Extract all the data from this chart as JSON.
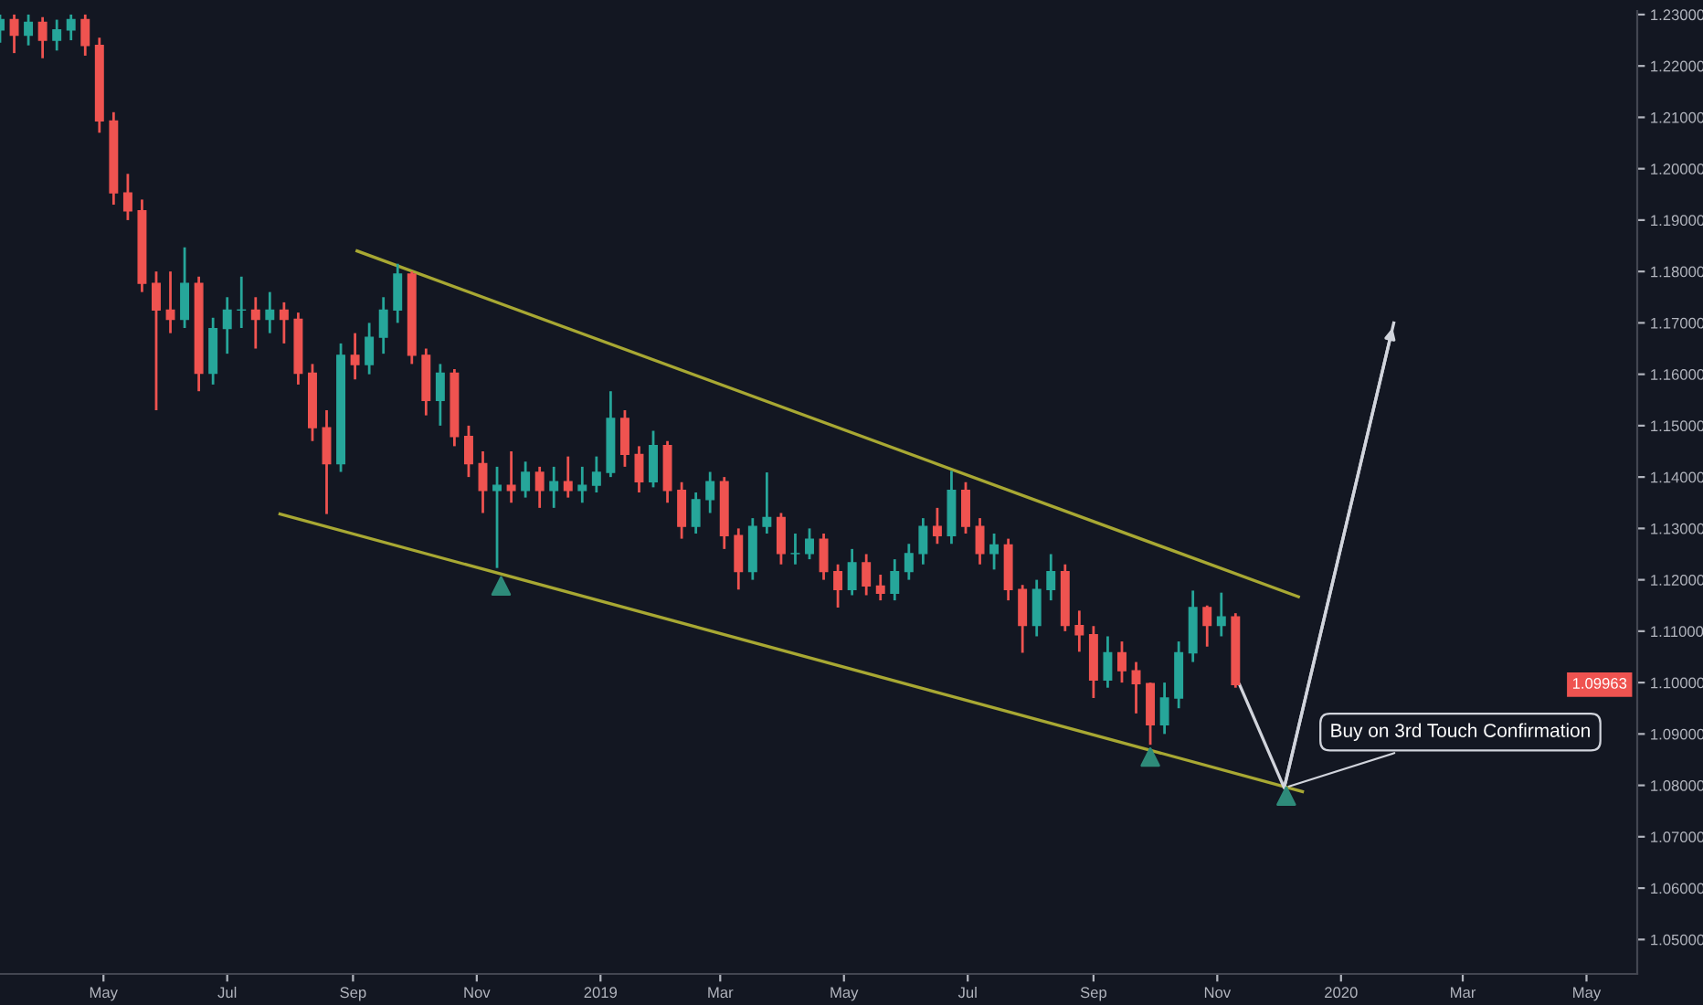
{
  "chart_data": {
    "type": "candlestick",
    "x": [
      "2018-03-11",
      "2018-03-18",
      "2018-03-25",
      "2018-04-01",
      "2018-04-08",
      "2018-04-15",
      "2018-04-22",
      "2018-04-29",
      "2018-05-06",
      "2018-05-13",
      "2018-05-20",
      "2018-05-27",
      "2018-06-03",
      "2018-06-10",
      "2018-06-17",
      "2018-06-24",
      "2018-07-01",
      "2018-07-08",
      "2018-07-15",
      "2018-07-22",
      "2018-07-29",
      "2018-08-05",
      "2018-08-12",
      "2018-08-19",
      "2018-08-26",
      "2018-09-02",
      "2018-09-09",
      "2018-09-16",
      "2018-09-23",
      "2018-09-30",
      "2018-10-07",
      "2018-10-14",
      "2018-10-21",
      "2018-10-28",
      "2018-11-04",
      "2018-11-11",
      "2018-11-18",
      "2018-11-25",
      "2018-12-02",
      "2018-12-09",
      "2018-12-16",
      "2018-12-23",
      "2018-12-30",
      "2019-01-06",
      "2019-01-13",
      "2019-01-20",
      "2019-01-27",
      "2019-02-03",
      "2019-02-10",
      "2019-02-17",
      "2019-02-24",
      "2019-03-03",
      "2019-03-10",
      "2019-03-17",
      "2019-03-24",
      "2019-03-31",
      "2019-04-07",
      "2019-04-14",
      "2019-04-21",
      "2019-04-28",
      "2019-05-05",
      "2019-05-12",
      "2019-05-19",
      "2019-05-26",
      "2019-06-02",
      "2019-06-09",
      "2019-06-16",
      "2019-06-23",
      "2019-06-30",
      "2019-07-07",
      "2019-07-14",
      "2019-07-21",
      "2019-07-28",
      "2019-08-04",
      "2019-08-11",
      "2019-08-18",
      "2019-08-25",
      "2019-09-01",
      "2019-09-08",
      "2019-09-15",
      "2019-09-22",
      "2019-09-29",
      "2019-10-06",
      "2019-10-13",
      "2019-10-20",
      "2019-10-27",
      "2019-11-03",
      "2019-11-10"
    ],
    "ohlc": [
      [
        1.227,
        1.23,
        1.2245,
        1.229
      ],
      [
        1.229,
        1.23,
        1.2225,
        1.226
      ],
      [
        1.226,
        1.23,
        1.224,
        1.2285
      ],
      [
        1.2285,
        1.2295,
        1.2215,
        1.225
      ],
      [
        1.225,
        1.229,
        1.223,
        1.227
      ],
      [
        1.227,
        1.23,
        1.225,
        1.229
      ],
      [
        1.229,
        1.23,
        1.222,
        1.224
      ],
      [
        1.224,
        1.2255,
        1.207,
        1.2093
      ],
      [
        1.2093,
        1.211,
        1.193,
        1.1953
      ],
      [
        1.1953,
        1.199,
        1.19,
        1.1918
      ],
      [
        1.1918,
        1.194,
        1.176,
        1.1777
      ],
      [
        1.1777,
        1.18,
        1.153,
        1.1725
      ],
      [
        1.1725,
        1.18,
        1.168,
        1.1707
      ],
      [
        1.1707,
        1.1847,
        1.169,
        1.1777
      ],
      [
        1.1777,
        1.179,
        1.1567,
        1.1602
      ],
      [
        1.1602,
        1.171,
        1.158,
        1.1689
      ],
      [
        1.1689,
        1.175,
        1.164,
        1.1725
      ],
      [
        1.1725,
        1.179,
        1.169,
        1.1725
      ],
      [
        1.1725,
        1.175,
        1.165,
        1.1707
      ],
      [
        1.1707,
        1.176,
        1.168,
        1.1725
      ],
      [
        1.1725,
        1.174,
        1.166,
        1.1707
      ],
      [
        1.1707,
        1.172,
        1.158,
        1.1602
      ],
      [
        1.1602,
        1.162,
        1.147,
        1.1496
      ],
      [
        1.1496,
        1.153,
        1.1328,
        1.1426
      ],
      [
        1.1426,
        1.166,
        1.141,
        1.1637
      ],
      [
        1.1637,
        1.168,
        1.159,
        1.1619
      ],
      [
        1.1619,
        1.17,
        1.16,
        1.1672
      ],
      [
        1.1672,
        1.175,
        1.164,
        1.1725
      ],
      [
        1.1725,
        1.1815,
        1.17,
        1.1795
      ],
      [
        1.1795,
        1.18,
        1.162,
        1.1637
      ],
      [
        1.1637,
        1.165,
        1.152,
        1.1549
      ],
      [
        1.1549,
        1.162,
        1.15,
        1.1602
      ],
      [
        1.1602,
        1.161,
        1.146,
        1.1479
      ],
      [
        1.1479,
        1.15,
        1.14,
        1.1426
      ],
      [
        1.1426,
        1.145,
        1.133,
        1.1374
      ],
      [
        1.1374,
        1.142,
        1.1223,
        1.1384
      ],
      [
        1.1384,
        1.145,
        1.135,
        1.1374
      ],
      [
        1.1374,
        1.143,
        1.136,
        1.1409
      ],
      [
        1.1409,
        1.142,
        1.134,
        1.1374
      ],
      [
        1.1374,
        1.142,
        1.134,
        1.1391
      ],
      [
        1.1391,
        1.144,
        1.136,
        1.1374
      ],
      [
        1.1374,
        1.142,
        1.135,
        1.1384
      ],
      [
        1.1384,
        1.144,
        1.137,
        1.1409
      ],
      [
        1.1409,
        1.1567,
        1.14,
        1.1514
      ],
      [
        1.1514,
        1.153,
        1.142,
        1.1444
      ],
      [
        1.1444,
        1.146,
        1.137,
        1.1391
      ],
      [
        1.1391,
        1.149,
        1.138,
        1.1461
      ],
      [
        1.1461,
        1.147,
        1.135,
        1.1374
      ],
      [
        1.1374,
        1.139,
        1.128,
        1.1304
      ],
      [
        1.1304,
        1.137,
        1.129,
        1.1356
      ],
      [
        1.1356,
        1.141,
        1.133,
        1.1391
      ],
      [
        1.1391,
        1.14,
        1.126,
        1.1286
      ],
      [
        1.1286,
        1.13,
        1.1181,
        1.1216
      ],
      [
        1.1216,
        1.132,
        1.12,
        1.1304
      ],
      [
        1.1304,
        1.1409,
        1.129,
        1.1321
      ],
      [
        1.1321,
        1.133,
        1.123,
        1.1251
      ],
      [
        1.1251,
        1.129,
        1.123,
        1.1251
      ],
      [
        1.1251,
        1.13,
        1.124,
        1.1279
      ],
      [
        1.1279,
        1.129,
        1.12,
        1.1216
      ],
      [
        1.1216,
        1.123,
        1.1146,
        1.1181
      ],
      [
        1.1181,
        1.126,
        1.117,
        1.1233
      ],
      [
        1.1233,
        1.125,
        1.117,
        1.1188
      ],
      [
        1.1188,
        1.121,
        1.116,
        1.1174
      ],
      [
        1.1174,
        1.124,
        1.116,
        1.1216
      ],
      [
        1.1216,
        1.127,
        1.12,
        1.1251
      ],
      [
        1.1251,
        1.132,
        1.123,
        1.1304
      ],
      [
        1.1304,
        1.134,
        1.127,
        1.1286
      ],
      [
        1.1286,
        1.1412,
        1.127,
        1.1374
      ],
      [
        1.1374,
        1.139,
        1.129,
        1.1304
      ],
      [
        1.1304,
        1.132,
        1.123,
        1.1251
      ],
      [
        1.1251,
        1.129,
        1.122,
        1.1268
      ],
      [
        1.1268,
        1.128,
        1.116,
        1.1181
      ],
      [
        1.1181,
        1.119,
        1.1058,
        1.1111
      ],
      [
        1.1111,
        1.12,
        1.109,
        1.1181
      ],
      [
        1.1181,
        1.125,
        1.116,
        1.1216
      ],
      [
        1.1216,
        1.123,
        1.11,
        1.1111
      ],
      [
        1.1111,
        1.114,
        1.106,
        1.1093
      ],
      [
        1.1093,
        1.111,
        1.097,
        1.1005
      ],
      [
        1.1005,
        1.109,
        1.099,
        1.1058
      ],
      [
        1.1058,
        1.108,
        1.1,
        1.1023
      ],
      [
        1.1023,
        1.104,
        1.094,
        1.0998
      ],
      [
        1.0998,
        1.1,
        1.0879,
        1.0918
      ],
      [
        1.0918,
        1.1,
        1.09,
        1.097
      ],
      [
        1.097,
        1.108,
        1.095,
        1.1058
      ],
      [
        1.1058,
        1.1179,
        1.104,
        1.1146
      ],
      [
        1.1146,
        1.115,
        1.107,
        1.1111
      ],
      [
        1.1111,
        1.1175,
        1.109,
        1.1128
      ],
      [
        1.1128,
        1.1135,
        1.099,
        1.0996
      ]
    ],
    "colors": [
      "#26a69a",
      "#ef5350",
      "#26a69a",
      "#ef5350",
      "#26a69a",
      "#26a69a",
      "#ef5350",
      "#ef5350",
      "#ef5350",
      "#ef5350",
      "#ef5350",
      "#ef5350",
      "#ef5350",
      "#26a69a",
      "#ef5350",
      "#26a69a",
      "#26a69a",
      "#26a69a",
      "#ef5350",
      "#26a69a",
      "#ef5350",
      "#ef5350",
      "#ef5350",
      "#ef5350",
      "#26a69a",
      "#ef5350",
      "#26a69a",
      "#26a69a",
      "#26a69a",
      "#ef5350",
      "#ef5350",
      "#26a69a",
      "#ef5350",
      "#ef5350",
      "#ef5350",
      "#26a69a",
      "#ef5350",
      "#26a69a",
      "#ef5350",
      "#26a69a",
      "#ef5350",
      "#26a69a",
      "#26a69a",
      "#26a69a",
      "#ef5350",
      "#ef5350",
      "#26a69a",
      "#ef5350",
      "#ef5350",
      "#26a69a",
      "#26a69a",
      "#ef5350",
      "#ef5350",
      "#26a69a",
      "#26a69a",
      "#ef5350",
      "#26a69a",
      "#26a69a",
      "#ef5350",
      "#ef5350",
      "#26a69a",
      "#ef5350",
      "#ef5350",
      "#26a69a",
      "#26a69a",
      "#26a69a",
      "#ef5350",
      "#26a69a",
      "#ef5350",
      "#ef5350",
      "#26a69a",
      "#ef5350",
      "#ef5350",
      "#26a69a",
      "#26a69a",
      "#ef5350",
      "#ef5350",
      "#ef5350",
      "#26a69a",
      "#ef5350",
      "#ef5350",
      "#ef5350",
      "#26a69a",
      "#26a69a",
      "#26a69a",
      "#ef5350",
      "#26a69a",
      "#ef5350"
    ],
    "series": [
      {
        "type": "line",
        "color": "#a8a833",
        "x": [
          "2018-09-03",
          "2019-12-11"
        ],
        "values": [
          1.184,
          1.1167
        ]
      },
      {
        "type": "line",
        "color": "#a8a833",
        "x": [
          "2018-07-27",
          "2019-12-13"
        ],
        "values": [
          1.1328,
          1.0788
        ]
      },
      {
        "type": "line",
        "color": "#d1d4dc",
        "x": [
          "2019-11-12",
          "2019-12-04",
          "2020-01-27"
        ],
        "values": [
          1.0996,
          1.0795,
          1.17
        ]
      },
      {
        "type": "scatter",
        "color": "#2e8b7a",
        "marker": "triangle",
        "x": [
          "2018-11-13",
          "2019-09-29",
          "2019-12-05"
        ],
        "values": [
          1.1188,
          1.0855,
          1.0779
        ]
      }
    ],
    "annotations": [
      {
        "text": "Buy on 3rd Touch Confirmation",
        "x": "2019-12-04",
        "y": 1.0795
      },
      "1.09963"
    ],
    "xlim": [
      "2018-03-11",
      "2020-05-26"
    ],
    "ylim": [
      1.0433,
      1.2307
    ],
    "xticks": [
      {
        "value": "2018-05-01",
        "label": "May"
      },
      {
        "value": "2018-07-01",
        "label": "Jul"
      },
      {
        "value": "2018-09-01",
        "label": "Sep"
      },
      {
        "value": "2018-11-01",
        "label": "Nov"
      },
      {
        "value": "2019-01-01",
        "label": "2019"
      },
      {
        "value": "2019-03-01",
        "label": "Mar"
      },
      {
        "value": "2019-05-01",
        "label": "May"
      },
      {
        "value": "2019-07-01",
        "label": "Jul"
      },
      {
        "value": "2019-09-01",
        "label": "Sep"
      },
      {
        "value": "2019-11-01",
        "label": "Nov"
      },
      {
        "value": "2020-01-01",
        "label": "2020"
      },
      {
        "value": "2020-03-01",
        "label": "Mar"
      },
      {
        "value": "2020-05-01",
        "label": "May"
      }
    ],
    "yticks": [
      {
        "value": 1.05,
        "label": "1.05000"
      },
      {
        "value": 1.06,
        "label": "1.06000"
      },
      {
        "value": 1.07,
        "label": "1.07000"
      },
      {
        "value": 1.08,
        "label": "1.08000"
      },
      {
        "value": 1.09,
        "label": "1.09000"
      },
      {
        "value": 1.1,
        "label": "1.10000"
      },
      {
        "value": 1.11,
        "label": "1.11000"
      },
      {
        "value": 1.12,
        "label": "1.12000"
      },
      {
        "value": 1.13,
        "label": "1.13000"
      },
      {
        "value": 1.14,
        "label": "1.14000"
      },
      {
        "value": 1.15,
        "label": "1.15000"
      },
      {
        "value": 1.16,
        "label": "1.16000"
      },
      {
        "value": 1.17,
        "label": "1.17000"
      },
      {
        "value": 1.18,
        "label": "1.18000"
      },
      {
        "value": 1.19,
        "label": "1.19000"
      },
      {
        "value": 1.2,
        "label": "1.20000"
      },
      {
        "value": 1.21,
        "label": "1.21000"
      },
      {
        "value": 1.22,
        "label": "1.22000"
      },
      {
        "value": 1.23,
        "label": "1.23000"
      }
    ],
    "grid": false
  }
}
